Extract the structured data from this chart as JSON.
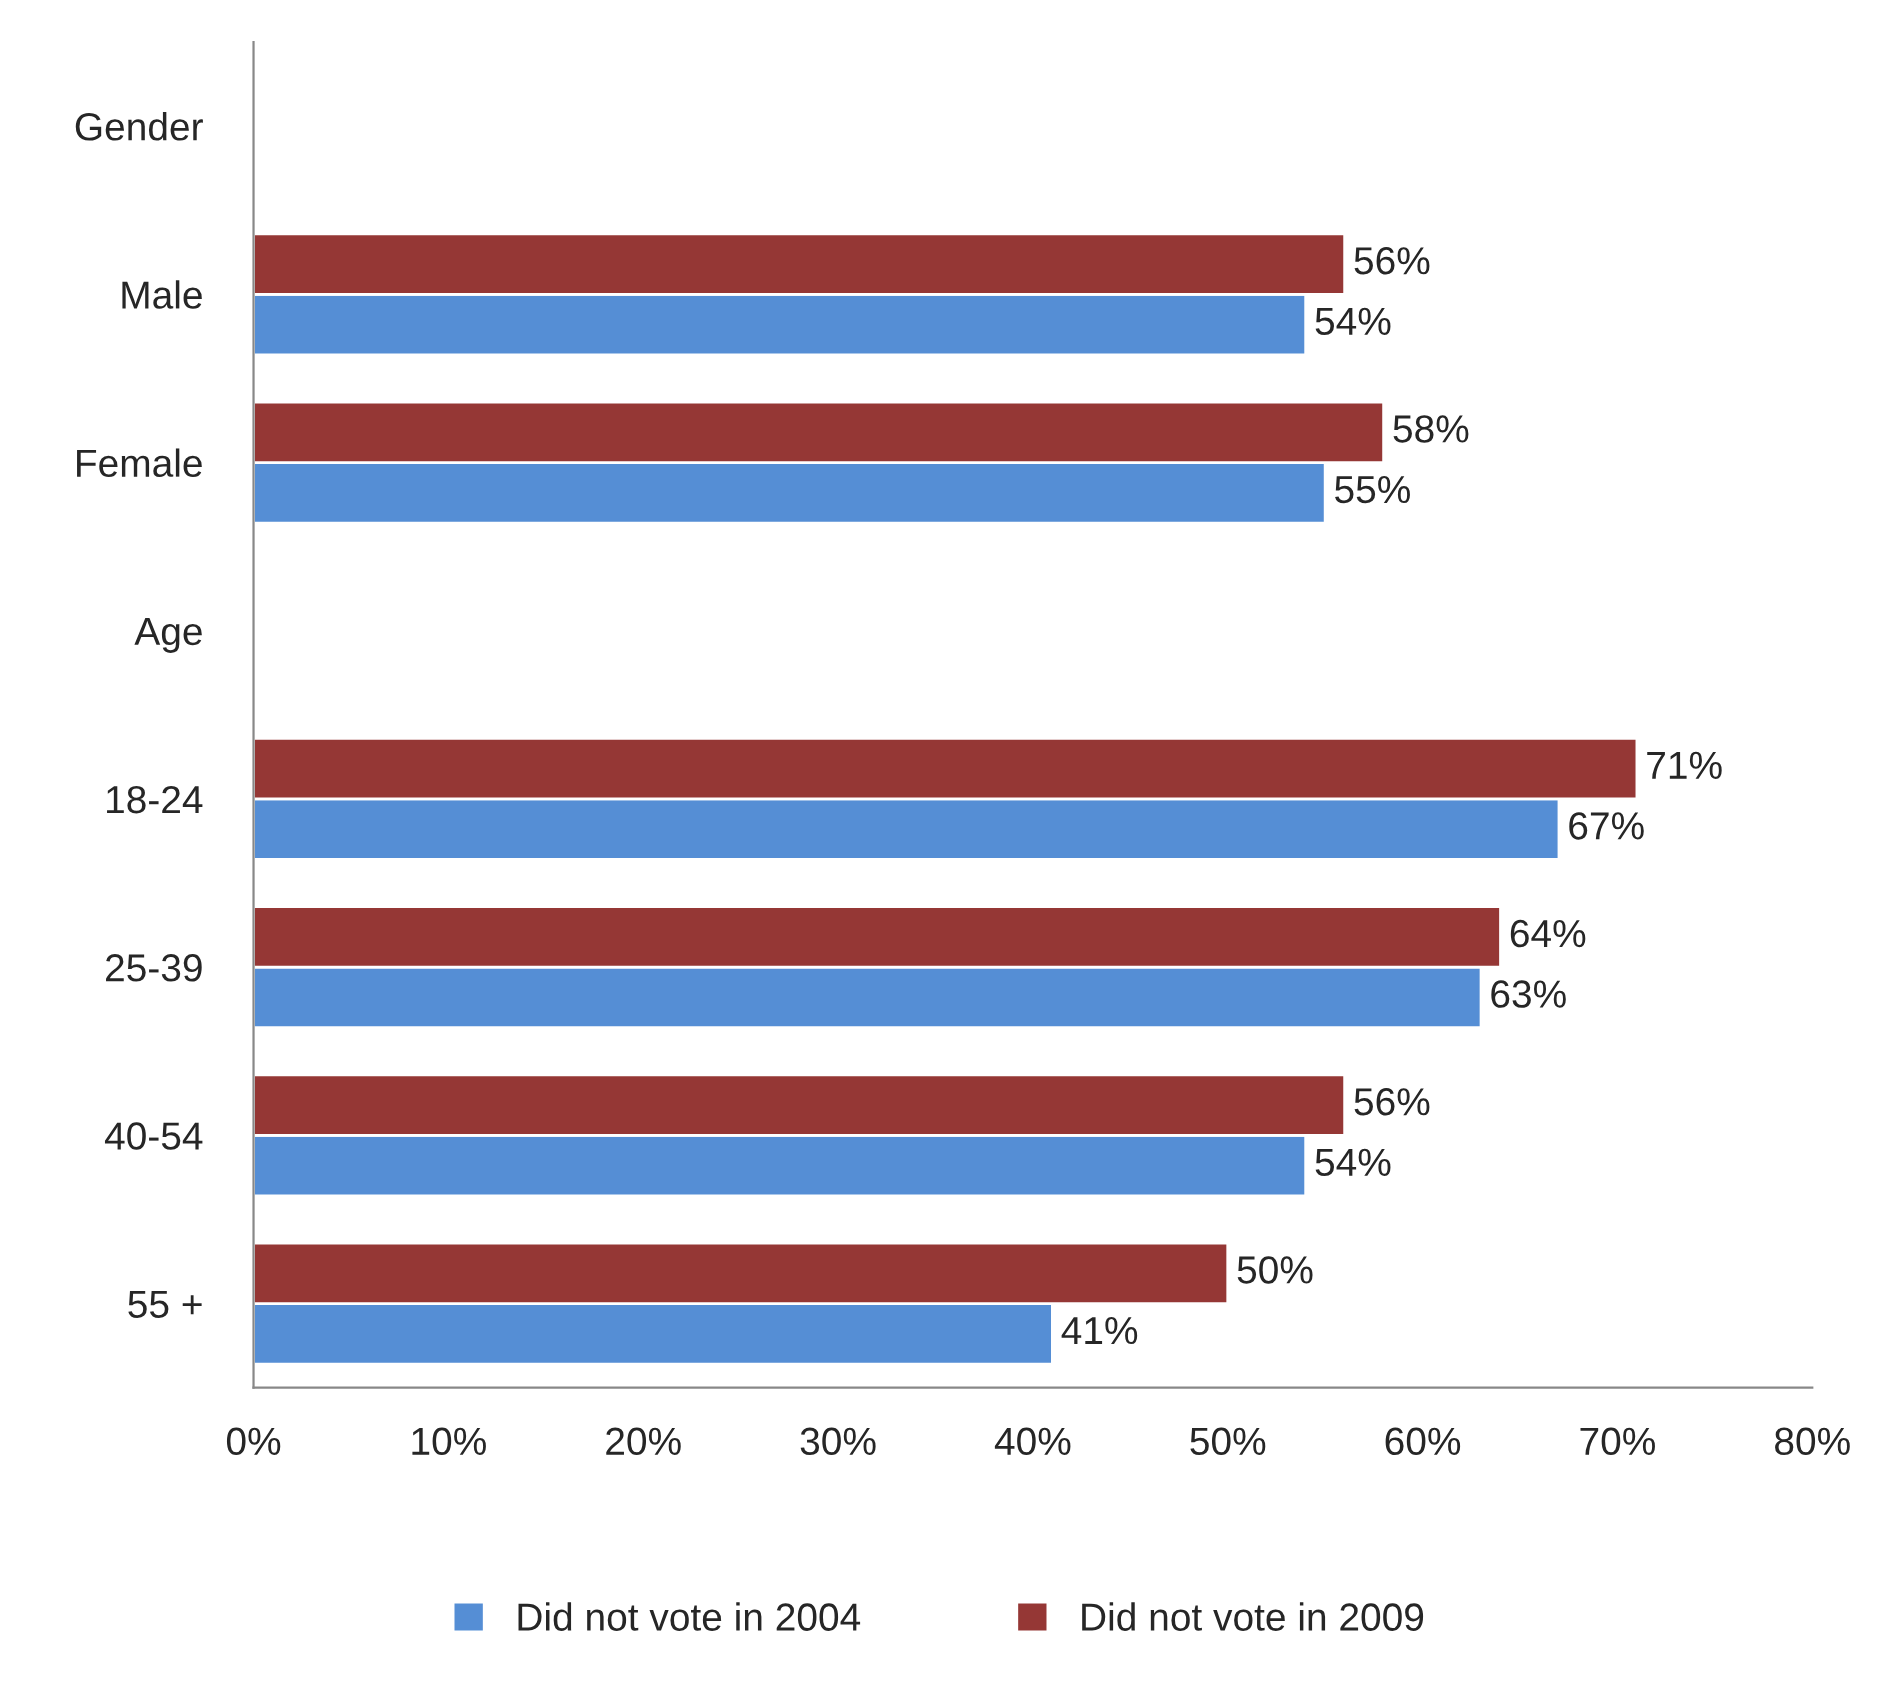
{
  "chart_data": {
    "type": "bar",
    "orientation": "horizontal",
    "categories": [
      "Gender",
      "Male",
      "Female",
      "Age",
      "18-24",
      "25-39",
      "40-54",
      "55 +"
    ],
    "series": [
      {
        "name": "Did not vote in 2004",
        "color": "#558ed5",
        "values": [
          null,
          54,
          55,
          null,
          67,
          63,
          54,
          41
        ],
        "value_labels": [
          null,
          "54%",
          "55%",
          null,
          "67%",
          "63%",
          "54%",
          "41%"
        ]
      },
      {
        "name": "Did not vote in 2009",
        "color": "#953735",
        "values": [
          null,
          56,
          58,
          null,
          71,
          64,
          56,
          50
        ],
        "value_labels": [
          null,
          "56%",
          "58%",
          null,
          "71%",
          "64%",
          "56%",
          "50%"
        ]
      }
    ],
    "xlim": [
      0,
      80
    ],
    "xticks": [
      {
        "value": 0,
        "label": "0%"
      },
      {
        "value": 10,
        "label": "10%"
      },
      {
        "value": 20,
        "label": "20%"
      },
      {
        "value": 30,
        "label": "30%"
      },
      {
        "value": 40,
        "label": "40%"
      },
      {
        "value": 50,
        "label": "50%"
      },
      {
        "value": 60,
        "label": "60%"
      },
      {
        "value": 70,
        "label": "70%"
      },
      {
        "value": 80,
        "label": "80%"
      }
    ],
    "grid": false,
    "legend": "bottom"
  }
}
